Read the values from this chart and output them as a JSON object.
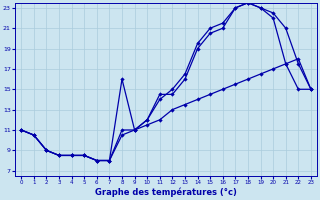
{
  "xlabel": "Graphe des températures (°c)",
  "bg_color": "#cce5f0",
  "grid_color": "#aaccdd",
  "line_color": "#0000aa",
  "x_min": 0,
  "x_max": 23,
  "y_min": 7,
  "y_max": 23,
  "y_ticks": [
    7,
    9,
    11,
    13,
    15,
    17,
    19,
    21,
    23
  ],
  "x_ticks": [
    0,
    1,
    2,
    3,
    4,
    5,
    6,
    7,
    8,
    9,
    10,
    11,
    12,
    13,
    14,
    15,
    16,
    17,
    18,
    19,
    20,
    21,
    22,
    23
  ],
  "line1_x": [
    0,
    1,
    2,
    3,
    4,
    5,
    6,
    7,
    8,
    9,
    10,
    11,
    12,
    13,
    14,
    15,
    16,
    17,
    18,
    19,
    20,
    21,
    22,
    23
  ],
  "line1_y": [
    11,
    10.5,
    9.0,
    8.5,
    8.5,
    8.5,
    8.0,
    8.0,
    16.0,
    11.0,
    12.0,
    14.0,
    15.0,
    16.5,
    19.5,
    21.0,
    21.5,
    23.0,
    23.5,
    23.0,
    22.5,
    21.0,
    17.5,
    15.0
  ],
  "line2_x": [
    0,
    1,
    2,
    3,
    4,
    5,
    6,
    7,
    8,
    9,
    10,
    11,
    12,
    13,
    14,
    15,
    16,
    17,
    18,
    19,
    20,
    21,
    22,
    23
  ],
  "line2_y": [
    11,
    10.5,
    9.0,
    8.5,
    8.5,
    8.5,
    8.0,
    8.0,
    11.0,
    11.0,
    12.0,
    14.5,
    14.5,
    16.0,
    19.0,
    20.5,
    21.0,
    23.0,
    23.5,
    23.0,
    22.0,
    17.5,
    15.0,
    15.0
  ],
  "line3_x": [
    0,
    1,
    2,
    3,
    4,
    5,
    6,
    7,
    8,
    9,
    10,
    11,
    12,
    13,
    14,
    15,
    16,
    17,
    18,
    19,
    20,
    21,
    22,
    23
  ],
  "line3_y": [
    11,
    10.5,
    9.0,
    8.5,
    8.5,
    8.5,
    8.0,
    8.0,
    10.5,
    11.0,
    11.5,
    12.0,
    13.0,
    13.5,
    14.0,
    14.5,
    15.0,
    15.5,
    16.0,
    16.5,
    17.0,
    17.5,
    18.0,
    15.0
  ]
}
